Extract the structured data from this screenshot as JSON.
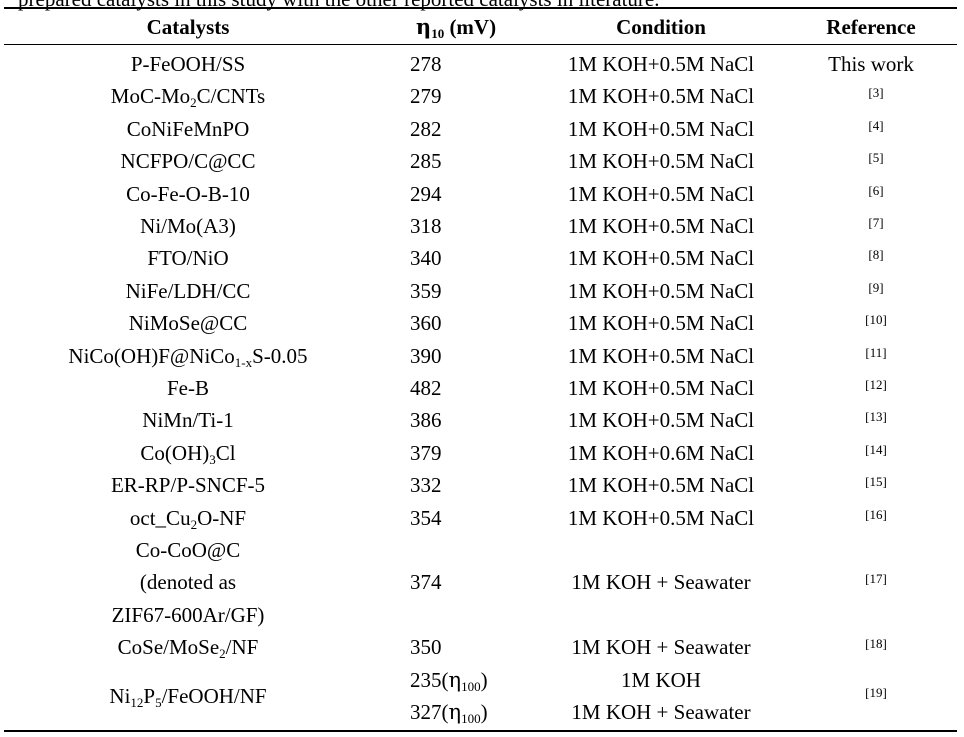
{
  "caption": "prepared catalysts in this study with the other reported catalysts in literature.",
  "headers": {
    "catalysts": "Catalysts",
    "eta_symbol": "η",
    "eta_sub": "10",
    "eta_unit": " (mV)",
    "condition": "Condition",
    "reference": "Reference"
  },
  "rows": [
    {
      "catalyst": "P-FeOOH/SS",
      "eta": "278",
      "condition": "1M KOH+0.5M NaCl",
      "reference": "This work"
    },
    {
      "catalyst_parts": [
        "MoC-Mo",
        "2",
        "C/CNTs"
      ],
      "eta": "279",
      "condition": "1M KOH+0.5M NaCl",
      "reference": "[3]"
    },
    {
      "catalyst": "CoNiFeMnPO",
      "eta": "282",
      "condition": "1M KOH+0.5M NaCl",
      "reference": "[4]"
    },
    {
      "catalyst": "NCFPO/C@CC",
      "eta": "285",
      "condition": "1M KOH+0.5M NaCl",
      "reference": "[5]"
    },
    {
      "catalyst": "Co-Fe-O-B-10",
      "eta": "294",
      "condition": "1M KOH+0.5M NaCl",
      "reference": "[6]"
    },
    {
      "catalyst": "Ni/Mo(A3)",
      "eta": "318",
      "condition": "1M KOH+0.5M NaCl",
      "reference": "[7]"
    },
    {
      "catalyst": "FTO/NiO",
      "eta": "340",
      "condition": "1M KOH+0.5M NaCl",
      "reference": "[8]"
    },
    {
      "catalyst": "NiFe/LDH/CC",
      "eta": "359",
      "condition": "1M KOH+0.5M NaCl",
      "reference": "[9]"
    },
    {
      "catalyst": "NiMoSe@CC",
      "eta": "360",
      "condition": "1M KOH+0.5M NaCl",
      "reference": "[10]"
    },
    {
      "catalyst_parts": [
        "NiCo(OH)F@NiCo",
        "1-x",
        "S-0.05"
      ],
      "eta": "390",
      "condition": "1M KOH+0.5M NaCl",
      "reference": "[11]"
    },
    {
      "catalyst": "Fe-B",
      "eta": "482",
      "condition": "1M KOH+0.5M NaCl",
      "reference": "[12]"
    },
    {
      "catalyst": "NiMn/Ti-1",
      "eta": "386",
      "condition": "1M KOH+0.5M NaCl",
      "reference": "[13]"
    },
    {
      "catalyst_parts": [
        "Co(OH)",
        "3",
        "Cl"
      ],
      "eta": "379",
      "condition": "1M KOH+0.6M NaCl",
      "reference": "[14]"
    },
    {
      "catalyst": "ER-RP/P-SNCF-5",
      "eta": "332",
      "condition": "1M KOH+0.5M NaCl",
      "reference": "[15]"
    },
    {
      "catalyst_parts": [
        "oct_Cu",
        "2",
        "O-NF"
      ],
      "eta": "354",
      "condition": "1M KOH+0.5M NaCl",
      "reference": "[16]"
    },
    {
      "catalyst_lines": [
        "Co-CoO@C",
        "(denoted as",
        "ZIF67-600Ar/GF)"
      ],
      "eta": "374",
      "condition": "1M KOH + Seawater",
      "reference": "[17]"
    },
    {
      "catalyst_parts": [
        "CoSe/MoSe",
        "2",
        "/NF"
      ],
      "eta": "350",
      "condition": "1M KOH + Seawater",
      "reference": "[18]"
    },
    {
      "catalyst_parts": [
        "Ni",
        "12",
        "P",
        "5",
        "/FeOOH/NF"
      ],
      "eta_lines": [
        {
          "value": "235(",
          "symbol": "η",
          "sub": "100",
          "close": ")"
        },
        {
          "value": "327(",
          "symbol": "η",
          "sub": "100",
          "close": ")"
        }
      ],
      "condition_lines": [
        "1M KOH",
        "1M KOH + Seawater"
      ],
      "reference": "[19]"
    }
  ]
}
